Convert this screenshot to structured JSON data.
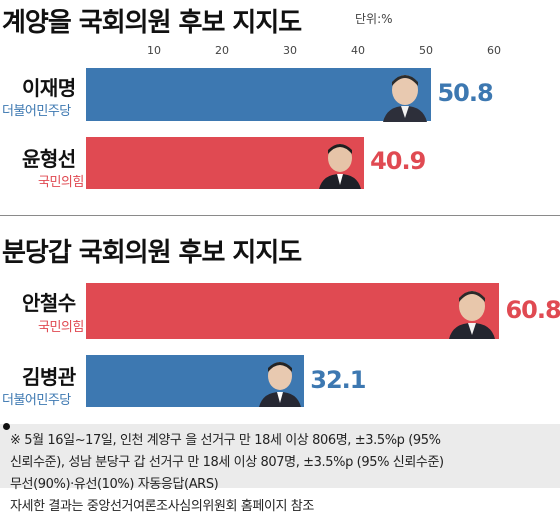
{
  "colors": {
    "democratic": "#3d78b1",
    "ppp": "#e04a52",
    "axis": "#555555"
  },
  "chart_data": [
    {
      "type": "bar",
      "orientation": "horizontal",
      "title": "계양을 국회의원 후보 지지도",
      "unit": "단위:%",
      "xlim": [
        0,
        60
      ],
      "ticks": [
        10,
        20,
        30,
        40,
        50,
        60
      ],
      "categories": [
        "이재명",
        "윤형선"
      ],
      "parties": [
        "더불어민주당",
        "국민의힘"
      ],
      "values": [
        50.8,
        40.9
      ],
      "value_labels": [
        "50.8",
        "40.9"
      ]
    },
    {
      "type": "bar",
      "orientation": "horizontal",
      "title": "분당갑 국회의원 후보 지지도",
      "xlim": [
        0,
        60
      ],
      "categories": [
        "안철수",
        "김병관"
      ],
      "parties": [
        "국민의힘",
        "더불어민주당"
      ],
      "values": [
        60.8,
        32.1
      ],
      "value_labels": [
        "60.8",
        "32.1"
      ]
    }
  ],
  "notes": [
    "※ 5월 16일~17일, 인천 계양구 을 선거구 만 18세 이상 806명, ±3.5%p (95%",
    "신뢰수준), 성남 분당구 갑 선거구 만 18세 이상 807명, ±3.5%p (95% 신뢰수준)",
    "무선(90%)·유선(10%) 자동응답(ARS)",
    "자세한 결과는 중앙선거여론조사심의위원회 홈페이지 참조"
  ]
}
